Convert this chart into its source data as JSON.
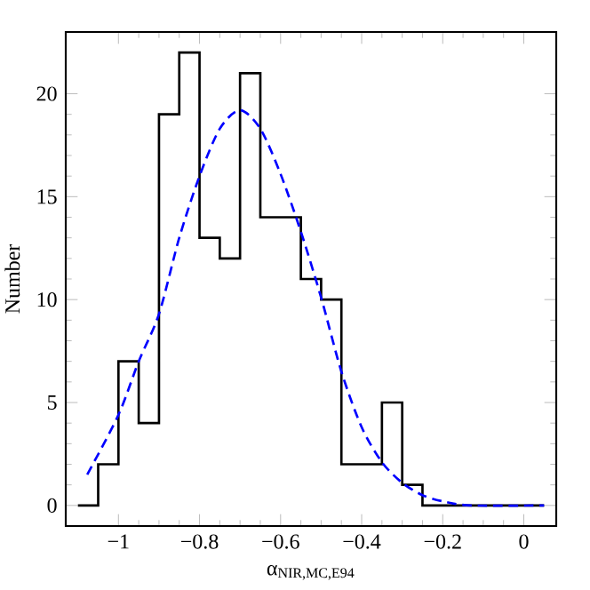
{
  "chart_data": {
    "type": "histogram",
    "xlabel": "α$_{NIR,MC,E94}$",
    "ylabel": "Number",
    "xlim": [
      -1.13,
      0.08
    ],
    "ylim": [
      -1,
      23
    ],
    "xticks": [
      {
        "value": -1,
        "label": "−1"
      },
      {
        "value": -0.8,
        "label": "−0.8"
      },
      {
        "value": -0.6,
        "label": "−0.6"
      },
      {
        "value": -0.4,
        "label": "−0.4"
      },
      {
        "value": -0.2,
        "label": "−0.2"
      },
      0
    ],
    "yticks": [
      0,
      5,
      10,
      15,
      20
    ],
    "grid": false,
    "series": [
      {
        "color": "#000000",
        "bins": [
          -1.1,
          -1.05,
          -1.0,
          -0.95,
          -0.9,
          -0.85,
          -0.8,
          -0.75,
          -0.7,
          -0.65,
          -0.6,
          -0.55,
          -0.5,
          -0.45,
          -0.4,
          -0.35,
          -0.3,
          -0.25,
          -0.2,
          -0.15,
          -0.1,
          -0.05,
          0.0,
          0.05
        ],
        "values": [
          0,
          2,
          7,
          4,
          19,
          22,
          13,
          12,
          21,
          14,
          14,
          11,
          10,
          2,
          2,
          5,
          1,
          0,
          0,
          0,
          0,
          0,
          0
        ]
      },
      {
        "type": "line",
        "color": "#0000ff",
        "line_style": "dashed",
        "x": [
          -1.077,
          -1.0,
          -0.95,
          -0.9,
          -0.85,
          -0.8,
          -0.75,
          -0.7,
          -0.65,
          -0.6,
          -0.55,
          -0.5,
          -0.45,
          -0.4,
          -0.35,
          -0.3,
          -0.25,
          -0.2,
          -0.13,
          0.05
        ],
        "values": [
          1.5,
          4.4,
          7,
          9.3,
          13,
          16,
          18.3,
          19.2,
          18.3,
          16.1,
          13.3,
          10.1,
          6.5,
          3.8,
          2.1,
          1.1,
          0.5,
          0.2,
          0,
          0
        ]
      }
    ]
  }
}
